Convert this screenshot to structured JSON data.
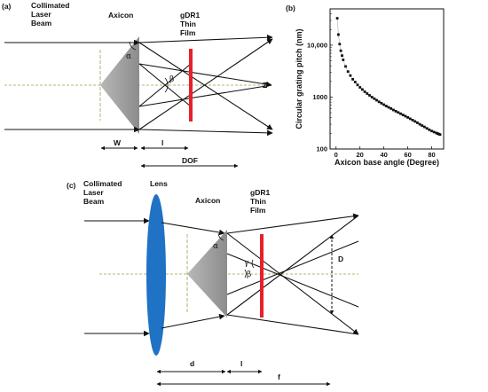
{
  "panel_a": {
    "tag": "(a)",
    "beam_label": [
      "Collimated",
      "Laser",
      "Beam"
    ],
    "axicon_label": "Axicon",
    "film_label": [
      "gDR1",
      "Thin",
      "Film"
    ],
    "alpha": "α",
    "beta": "β",
    "axis": "Z",
    "dim_w": "W",
    "dim_l": "l",
    "dim_dof": "DOF"
  },
  "panel_b": {
    "tag": "(b)"
  },
  "panel_c": {
    "tag": "(c)",
    "beam_label": [
      "Collimated",
      "Laser",
      "Beam"
    ],
    "lens_label": "Lens",
    "axicon_label": "Axicon",
    "film_label": [
      "gDR1",
      "Thin",
      "Film"
    ],
    "alpha": "α",
    "beta": "β",
    "gamma": "γ",
    "dim_D": "D",
    "dim_d": "d",
    "dim_l": "l",
    "dim_f": "f"
  },
  "colors": {
    "film": "#e8202a",
    "lens": "#1f72c4",
    "axicon": "#9a9a9a",
    "axis_dash": "#9aa04a"
  },
  "chart_data": {
    "type": "scatter",
    "xlabel": "Axicon base angle (Degree)",
    "ylabel": "Circular grating pitch (nm)",
    "xlim": [
      -5,
      90
    ],
    "ylim": [
      100,
      50000
    ],
    "yscale": "log",
    "xticks": [
      0,
      20,
      40,
      60,
      80
    ],
    "yticks": [
      100,
      1000,
      10000
    ],
    "yticklabels": [
      "100",
      "1000",
      "10,000"
    ],
    "grid": false,
    "x": [
      1,
      2,
      3,
      4,
      5,
      6,
      8,
      10,
      12,
      14,
      16,
      18,
      20,
      22,
      24,
      26,
      28,
      30,
      32,
      34,
      36,
      38,
      40,
      42,
      44,
      46,
      48,
      50,
      52,
      54,
      56,
      58,
      60,
      62,
      64,
      66,
      68,
      70,
      72,
      74,
      76,
      78,
      80,
      82,
      84,
      85,
      86,
      87
    ],
    "y": [
      33000,
      16000,
      10500,
      7800,
      6300,
      5200,
      3900,
      3100,
      2600,
      2200,
      1950,
      1720,
      1540,
      1400,
      1270,
      1170,
      1080,
      1000,
      930,
      870,
      810,
      760,
      715,
      670,
      635,
      600,
      565,
      535,
      505,
      478,
      452,
      428,
      405,
      382,
      360,
      340,
      320,
      300,
      282,
      266,
      250,
      235,
      222,
      212,
      203,
      198,
      194,
      190
    ]
  }
}
